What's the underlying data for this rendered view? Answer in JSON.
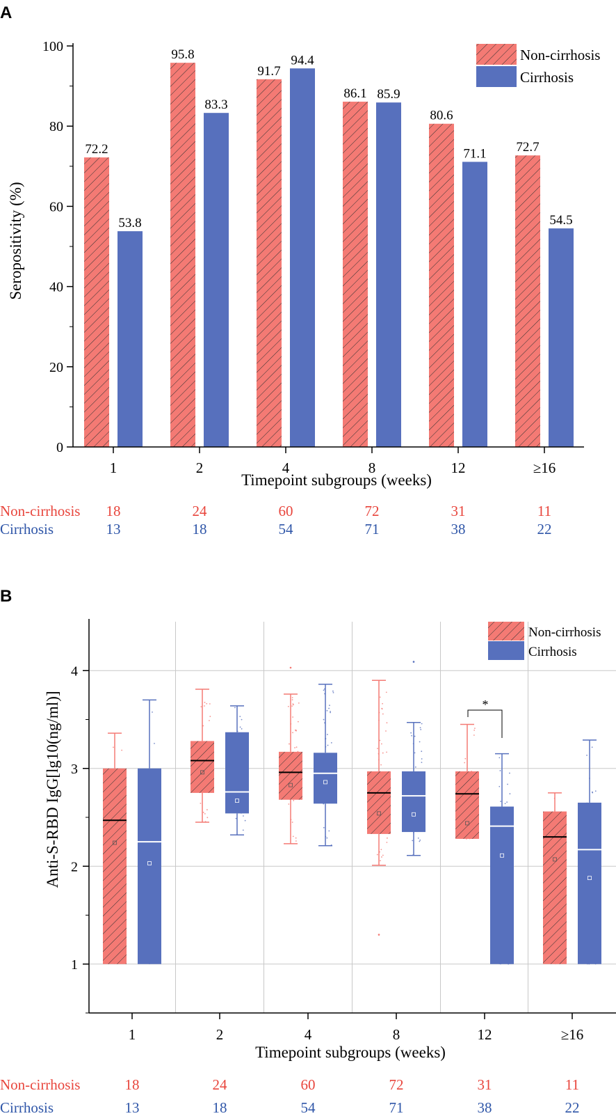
{
  "chart_data": [
    {
      "panel_label": "A",
      "type": "bar",
      "ylabel": "Seropositivity (%)",
      "xlabel": "Timepoint subgroups (weeks)",
      "ylim": [
        0,
        100
      ],
      "yticks": [
        "0",
        "20",
        "40",
        "60",
        "80",
        "100"
      ],
      "categories": [
        "1",
        "2",
        "4",
        "8",
        "12",
        "≥16"
      ],
      "series": [
        {
          "name": "Non-cirrhosis",
          "values": [
            72.2,
            95.8,
            91.7,
            86.1,
            80.6,
            72.7
          ],
          "labels": [
            "72.2",
            "95.8",
            "91.7",
            "86.1",
            "80.6",
            "72.7"
          ]
        },
        {
          "name": "Cirrhosis",
          "values": [
            53.8,
            83.3,
            94.4,
            85.9,
            71.1,
            54.5
          ],
          "labels": [
            "53.8",
            "83.3",
            "94.4",
            "85.9",
            "71.1",
            "54.5"
          ]
        }
      ],
      "counts": [
        {
          "name": "Non-cirrhosis",
          "values": [
            "18",
            "24",
            "60",
            "72",
            "31",
            "11"
          ]
        },
        {
          "name": "Cirrhosis",
          "values": [
            "13",
            "18",
            "54",
            "71",
            "38",
            "22"
          ]
        }
      ],
      "legend": "top-right",
      "grid": false
    },
    {
      "panel_label": "B",
      "type": "box",
      "ylabel": "Anti-S-RBD IgG[lg10(ng/ml)]",
      "xlabel": "Timepoint subgroups (weeks)",
      "ylim": [
        0.5,
        4.5
      ],
      "yticks": [
        "1",
        "2",
        "3",
        "4"
      ],
      "categories": [
        "1",
        "2",
        "4",
        "8",
        "12",
        "≥16"
      ],
      "series": [
        {
          "name": "Non-cirrhosis",
          "boxes": [
            {
              "whisker_low": 1.0,
              "q1": 1.0,
              "median": 2.47,
              "q3": 3.0,
              "whisker_high": 3.36,
              "mean": 2.24
            },
            {
              "whisker_low": 2.45,
              "q1": 2.75,
              "median": 3.08,
              "q3": 3.28,
              "whisker_high": 3.81,
              "mean": 2.96
            },
            {
              "whisker_low": 2.23,
              "q1": 2.68,
              "median": 2.96,
              "q3": 3.17,
              "whisker_high": 3.76,
              "mean": 2.83
            },
            {
              "whisker_low": 2.01,
              "q1": 2.33,
              "median": 2.75,
              "q3": 2.97,
              "whisker_high": 3.9,
              "mean": 2.54
            },
            {
              "whisker_low": 2.28,
              "q1": 2.28,
              "median": 2.74,
              "q3": 2.97,
              "whisker_high": 3.45,
              "mean": 2.44
            },
            {
              "whisker_low": 1.0,
              "q1": 1.0,
              "median": 2.3,
              "q3": 2.56,
              "whisker_high": 2.75,
              "mean": 2.07
            }
          ]
        },
        {
          "name": "Cirrhosis",
          "boxes": [
            {
              "whisker_low": 1.0,
              "q1": 1.0,
              "median": 2.25,
              "q3": 3.0,
              "whisker_high": 3.7,
              "mean": 2.03
            },
            {
              "whisker_low": 2.32,
              "q1": 2.54,
              "median": 2.76,
              "q3": 3.37,
              "whisker_high": 3.64,
              "mean": 2.67
            },
            {
              "whisker_low": 2.21,
              "q1": 2.64,
              "median": 2.95,
              "q3": 3.16,
              "whisker_high": 3.86,
              "mean": 2.86
            },
            {
              "whisker_low": 2.11,
              "q1": 2.35,
              "median": 2.72,
              "q3": 2.97,
              "whisker_high": 3.47,
              "mean": 2.53
            },
            {
              "whisker_low": 1.0,
              "q1": 1.0,
              "median": 2.41,
              "q3": 2.61,
              "whisker_high": 3.15,
              "mean": 2.11
            },
            {
              "whisker_low": 1.0,
              "q1": 1.0,
              "median": 2.17,
              "q3": 2.65,
              "whisker_high": 3.29,
              "mean": 1.88
            }
          ]
        }
      ],
      "outliers": [
        {
          "series": "Non-cirrhosis",
          "category": "4",
          "value": 4.03
        },
        {
          "series": "Cirrhosis",
          "category": "8",
          "value": 4.09
        },
        {
          "series": "Non-cirrhosis",
          "category": "8",
          "value": 1.3
        }
      ],
      "annotations": [
        {
          "category": "12",
          "text": "*",
          "type": "significance-bracket"
        }
      ],
      "counts": [
        {
          "name": "Non-cirrhosis",
          "values": [
            "18",
            "24",
            "60",
            "72",
            "31",
            "11"
          ]
        },
        {
          "name": "Cirrhosis",
          "values": [
            "13",
            "18",
            "54",
            "71",
            "38",
            "22"
          ]
        }
      ],
      "legend": "top-right",
      "grid": true
    }
  ],
  "colors": {
    "non_cirrhosis": "#f47a74",
    "non_cirrhosis_text": "#e8453c",
    "cirrhosis": "#5770bd",
    "cirrhosis_text": "#2f56a8",
    "axis": "#000000",
    "grid": "#c8c8c8"
  }
}
